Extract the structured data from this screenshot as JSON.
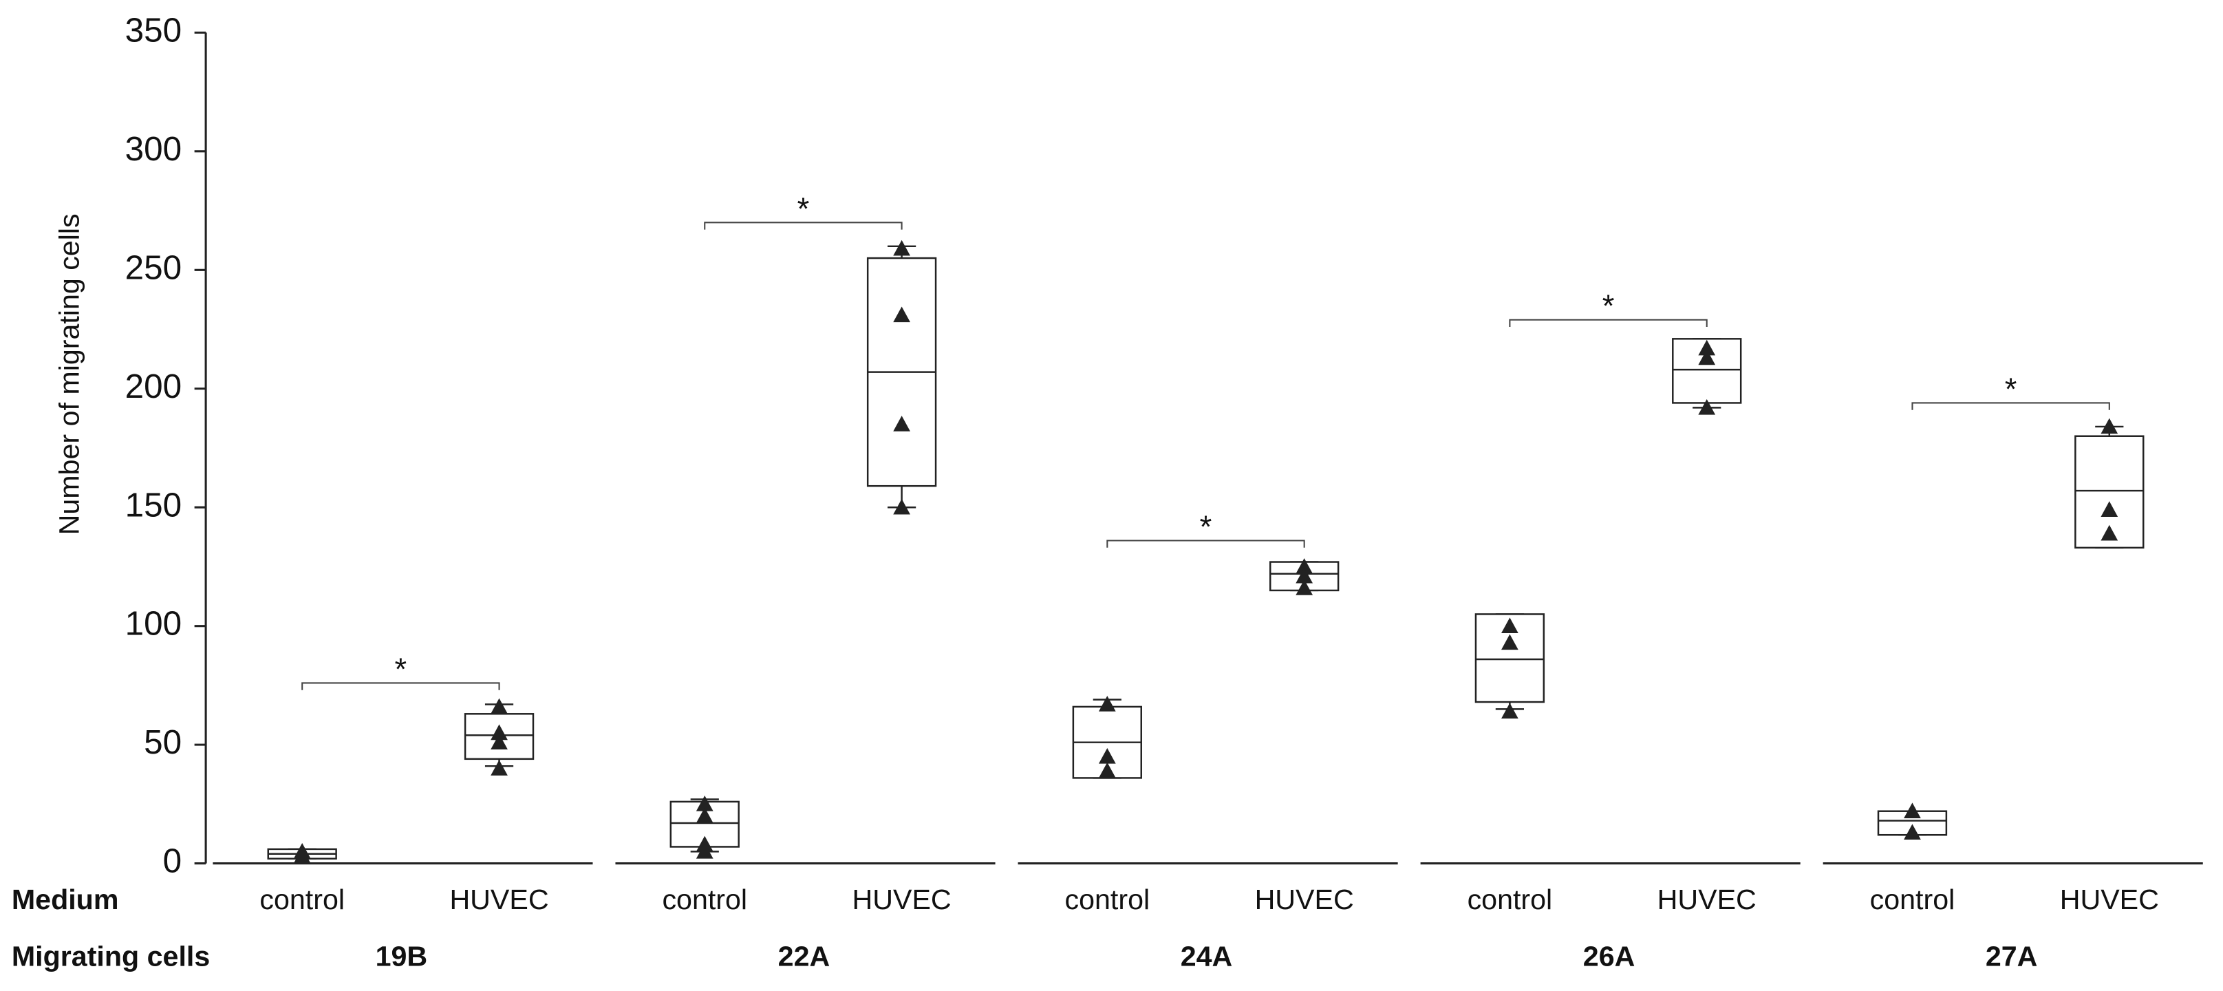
{
  "chart_data": {
    "type": "box",
    "ylabel": "Number of migrating cells",
    "ylim": [
      0,
      350
    ],
    "yticks": [
      0,
      50,
      100,
      150,
      200,
      250,
      300,
      350
    ],
    "row_labels": [
      "Medium",
      "Migrating cells"
    ],
    "color": "#222222",
    "groups": [
      {
        "name": "19B",
        "boxes": [
          {
            "category": "control",
            "min": 2,
            "q1": 2,
            "median": 4,
            "q3": 6,
            "max": 6,
            "points": [
              5,
              3
            ]
          },
          {
            "category": "HUVEC",
            "min": 41,
            "q1": 44,
            "median": 54,
            "q3": 63,
            "max": 67,
            "points": [
              66,
              55,
              51,
              40
            ]
          }
        ],
        "annotation": {
          "text": "*",
          "y": 76
        }
      },
      {
        "name": "22A",
        "boxes": [
          {
            "category": "control",
            "min": 5,
            "q1": 7,
            "median": 17,
            "q3": 26,
            "max": 27,
            "points": [
              25,
              20,
              8,
              5
            ]
          },
          {
            "category": "HUVEC",
            "min": 150,
            "q1": 159,
            "median": 207,
            "q3": 255,
            "max": 260,
            "points": [
              259,
              231,
              185,
              150
            ]
          }
        ],
        "annotation": {
          "text": "*",
          "y": 270
        }
      },
      {
        "name": "24A",
        "boxes": [
          {
            "category": "control",
            "min": 36,
            "q1": 36,
            "median": 51,
            "q3": 66,
            "max": 69,
            "points": [
              67,
              45,
              39
            ]
          },
          {
            "category": "HUVEC",
            "min": 115,
            "q1": 115,
            "median": 122,
            "q3": 127,
            "max": 127,
            "points": [
              125,
              121,
              116
            ]
          }
        ],
        "annotation": {
          "text": "*",
          "y": 136
        }
      },
      {
        "name": "26A",
        "boxes": [
          {
            "category": "control",
            "min": 65,
            "q1": 68,
            "median": 86,
            "q3": 105,
            "max": 105,
            "points": [
              100,
              93,
              64
            ]
          },
          {
            "category": "HUVEC",
            "min": 192,
            "q1": 194,
            "median": 208,
            "q3": 221,
            "max": 221,
            "points": [
              217,
              213,
              192
            ]
          }
        ],
        "annotation": {
          "text": "*",
          "y": 229
        }
      },
      {
        "name": "27A",
        "boxes": [
          {
            "category": "control",
            "min": 12,
            "q1": 12,
            "median": 18,
            "q3": 22,
            "max": 22,
            "points": [
              22,
              13
            ]
          },
          {
            "category": "HUVEC",
            "min": 133,
            "q1": 133,
            "median": 157,
            "q3": 180,
            "max": 184,
            "points": [
              184,
              149,
              139
            ]
          }
        ],
        "annotation": {
          "text": "*",
          "y": 194
        }
      }
    ]
  }
}
